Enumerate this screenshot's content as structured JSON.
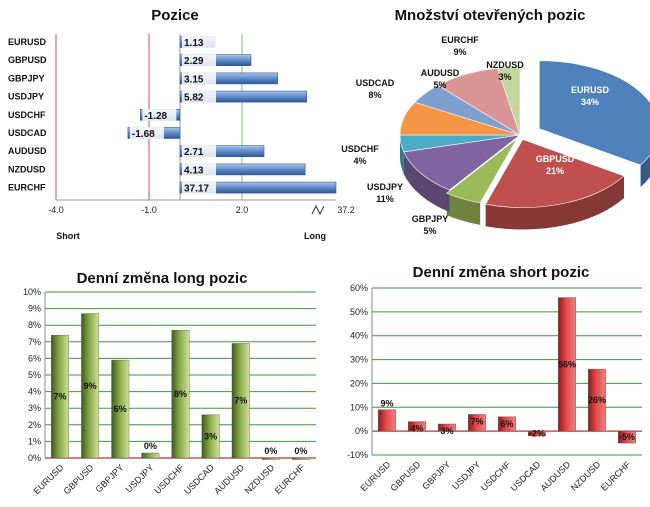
{
  "chart_data": [
    {
      "type": "bar",
      "orientation": "horizontal",
      "title": "Pozice",
      "categories": [
        "EURUSD",
        "GBPUSD",
        "GBPJPY",
        "USDJPY",
        "USDCHF",
        "USDCAD",
        "AUDUSD",
        "NZDUSD",
        "EURCHF"
      ],
      "values": [
        1.13,
        2.29,
        3.15,
        5.82,
        -1.28,
        -1.68,
        2.71,
        4.13,
        37.17
      ],
      "value_labels": [
        "1.13",
        "2.29",
        "3.15",
        "5.82",
        "-1.28",
        "-1.68",
        "2.71",
        "4.13",
        "37.17"
      ],
      "xticks": [
        "-4.0",
        "-1.0",
        "2.0",
        "37.2"
      ],
      "axis_break": "2.0 – 37.2",
      "left_label": "Short",
      "right_label": "Long",
      "colors": {
        "bar": "#5a86c3",
        "bar_dark": "#2f5a96",
        "ref_line": "#d05050",
        "grid": "#7fc07f"
      }
    },
    {
      "type": "pie",
      "title": "Množství otevřených pozic",
      "slices": [
        {
          "label": "EURUSD",
          "value": 34,
          "pct": "34%",
          "color": "#4f81bd"
        },
        {
          "label": "GBPUSD",
          "value": 21,
          "pct": "21%",
          "color": "#c0504d"
        },
        {
          "label": "GBPJPY",
          "value": 5,
          "pct": "5%",
          "color": "#9bbb59"
        },
        {
          "label": "USDJPY",
          "value": 11,
          "pct": "11%",
          "color": "#8064a2"
        },
        {
          "label": "USDCHF",
          "value": 4,
          "pct": "4%",
          "color": "#4bacc6"
        },
        {
          "label": "USDCAD",
          "value": 8,
          "pct": "8%",
          "color": "#f79646"
        },
        {
          "label": "AUDUSD",
          "value": 5,
          "pct": "5%",
          "color": "#7f9fd1"
        },
        {
          "label": "EURCHF",
          "value": 9,
          "pct": "9%",
          "color": "#d99694"
        },
        {
          "label": "NZDUSD",
          "value": 3,
          "pct": "3%",
          "color": "#c3d69b"
        }
      ]
    },
    {
      "type": "bar",
      "title": "Denní změna long pozic",
      "categories": [
        "EURUSD",
        "GBPUSD",
        "GBPJPY",
        "USDJPY",
        "USDCHF",
        "USDCAD",
        "AUDUSD",
        "NZDUSD",
        "EURCHF"
      ],
      "values": [
        7.4,
        8.7,
        5.9,
        0.3,
        7.7,
        2.6,
        6.9,
        0,
        0
      ],
      "value_labels": [
        "7%",
        "9%",
        "6%",
        "0%",
        "8%",
        "3%",
        "7%",
        "0%",
        "0%"
      ],
      "ylim": [
        0,
        10
      ],
      "yticks": [
        "0%",
        "1%",
        "2%",
        "3%",
        "4%",
        "5%",
        "6%",
        "7%",
        "8%",
        "9%",
        "10%"
      ],
      "colors": {
        "bar": "#6f8f3a",
        "bar_light": "#b9d27c",
        "grid": "#3a9a3a",
        "zero": "#c03030"
      }
    },
    {
      "type": "bar",
      "title": "Denní změna short pozic",
      "categories": [
        "EURUSD",
        "GBPUSD",
        "GBPJPY",
        "USDJPY",
        "USDCHF",
        "USDCAD",
        "AUDUSD",
        "NZDUSD",
        "EURCHF"
      ],
      "values": [
        9,
        4,
        3,
        7,
        6,
        -2,
        56,
        26,
        -5
      ],
      "value_labels": [
        "9%",
        "4%",
        "3%",
        "7%",
        "6%",
        "-2%",
        "56%",
        "26%",
        "-5%"
      ],
      "ylim": [
        -10,
        60
      ],
      "yticks": [
        "-10%",
        "0%",
        "10%",
        "20%",
        "30%",
        "40%",
        "50%",
        "60%"
      ],
      "colors": {
        "bar": "#d83a3a",
        "bar_dark": "#9e1f1f",
        "grid": "#3a9a3a",
        "zero": "#c03030"
      }
    }
  ]
}
